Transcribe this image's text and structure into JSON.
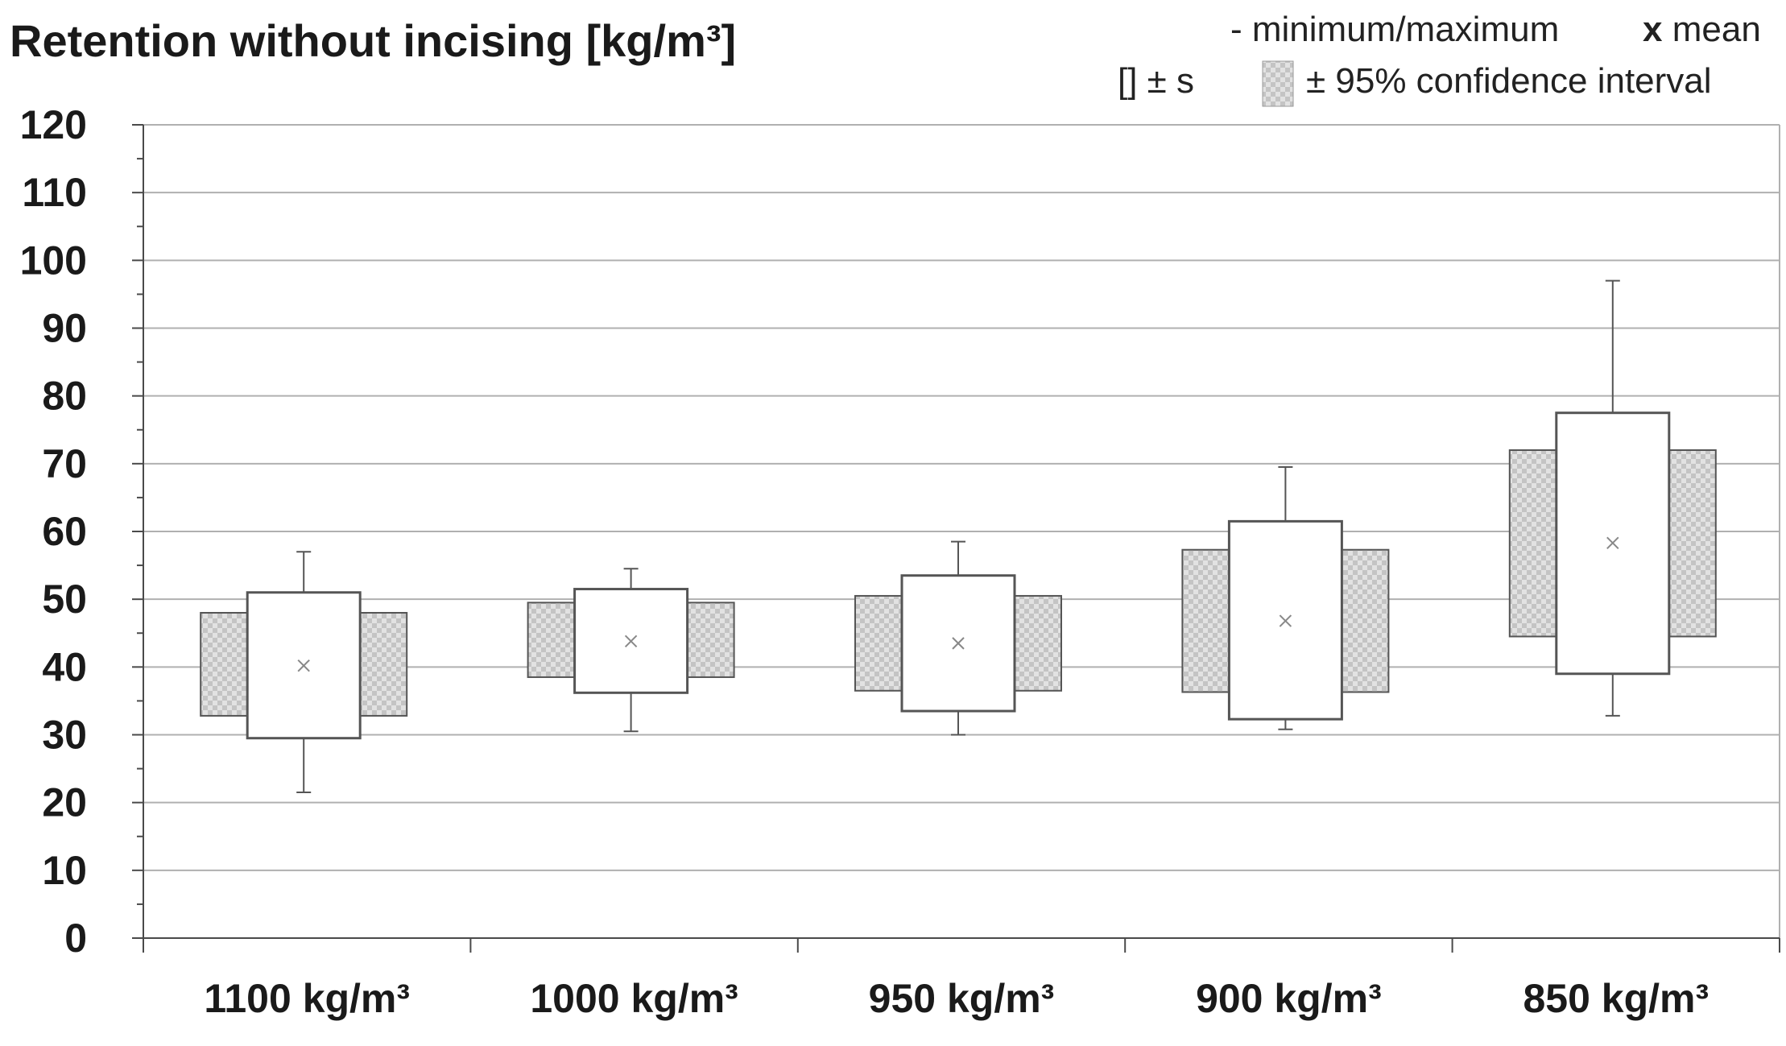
{
  "chart_data": {
    "type": "box",
    "title": "Retention without incising [kg/m³]",
    "xlabel": "",
    "ylabel": "",
    "ylim": [
      0,
      120
    ],
    "ytick_step": 10,
    "grid": "horizontal",
    "categories": [
      "1100 kg/m³",
      "1000 kg/m³",
      "950 kg/m³",
      "900 kg/m³",
      "850 kg/m³"
    ],
    "boxes": [
      {
        "category": "1100 kg/m³",
        "min": 21.5,
        "max": 57,
        "mean": 40.2,
        "sd_low": 29.5,
        "sd_high": 51,
        "ci_low": 32.8,
        "ci_high": 48
      },
      {
        "category": "1000 kg/m³",
        "min": 30.5,
        "max": 54.5,
        "mean": 43.8,
        "sd_low": 36.2,
        "sd_high": 51.5,
        "ci_low": 38.5,
        "ci_high": 49.5
      },
      {
        "category": "950 kg/m³",
        "min": 30,
        "max": 58.5,
        "mean": 43.5,
        "sd_low": 33.5,
        "sd_high": 53.5,
        "ci_low": 36.5,
        "ci_high": 50.5
      },
      {
        "category": "900 kg/m³",
        "min": 30.8,
        "max": 69.5,
        "mean": 46.8,
        "sd_low": 32.3,
        "sd_high": 61.5,
        "ci_low": 36.3,
        "ci_high": 57.3
      },
      {
        "category": "850 kg/m³",
        "min": 32.8,
        "max": 97,
        "mean": 58.3,
        "sd_low": 39,
        "sd_high": 77.5,
        "ci_low": 44.5,
        "ci_high": 72
      }
    ],
    "legend": {
      "min_max_label": "- minimum/maximum",
      "mean_label": "mean",
      "mean_symbol": "x",
      "sd_label": "[] ± s",
      "ci_label": "± 95% confidence interval",
      "placement": "top-right"
    }
  },
  "colors": {
    "grid": "#b0b0b0",
    "axis": "#4a4a4a",
    "box_stroke": "#555555",
    "ci_fill": "#d2d2d2",
    "mean": "#888888"
  }
}
